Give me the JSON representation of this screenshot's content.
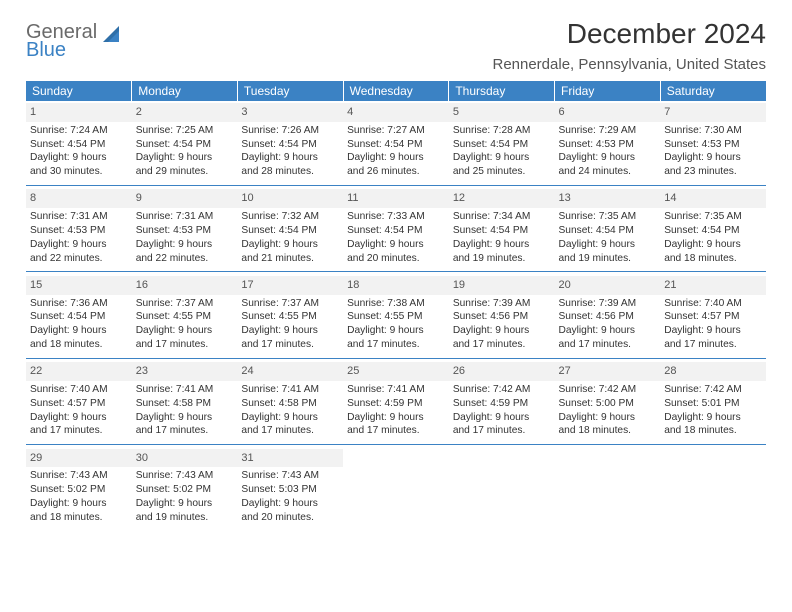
{
  "logo": {
    "line1": "General",
    "line2": "Blue",
    "icon_color": "#3b82c4",
    "text_gray": "#6a6a6a"
  },
  "title": "December 2024",
  "location": "Rennerdale, Pennsylvania, United States",
  "theme": {
    "header_bg": "#3b82c4",
    "header_fg": "#ffffff",
    "daynum_bg": "#f2f2f2",
    "rule": "#3b82c4"
  },
  "weekdays": [
    "Sunday",
    "Monday",
    "Tuesday",
    "Wednesday",
    "Thursday",
    "Friday",
    "Saturday"
  ],
  "weeks": [
    [
      {
        "n": "1",
        "sr": "Sunrise: 7:24 AM",
        "ss": "Sunset: 4:54 PM",
        "d1": "Daylight: 9 hours",
        "d2": "and 30 minutes."
      },
      {
        "n": "2",
        "sr": "Sunrise: 7:25 AM",
        "ss": "Sunset: 4:54 PM",
        "d1": "Daylight: 9 hours",
        "d2": "and 29 minutes."
      },
      {
        "n": "3",
        "sr": "Sunrise: 7:26 AM",
        "ss": "Sunset: 4:54 PM",
        "d1": "Daylight: 9 hours",
        "d2": "and 28 minutes."
      },
      {
        "n": "4",
        "sr": "Sunrise: 7:27 AM",
        "ss": "Sunset: 4:54 PM",
        "d1": "Daylight: 9 hours",
        "d2": "and 26 minutes."
      },
      {
        "n": "5",
        "sr": "Sunrise: 7:28 AM",
        "ss": "Sunset: 4:54 PM",
        "d1": "Daylight: 9 hours",
        "d2": "and 25 minutes."
      },
      {
        "n": "6",
        "sr": "Sunrise: 7:29 AM",
        "ss": "Sunset: 4:53 PM",
        "d1": "Daylight: 9 hours",
        "d2": "and 24 minutes."
      },
      {
        "n": "7",
        "sr": "Sunrise: 7:30 AM",
        "ss": "Sunset: 4:53 PM",
        "d1": "Daylight: 9 hours",
        "d2": "and 23 minutes."
      }
    ],
    [
      {
        "n": "8",
        "sr": "Sunrise: 7:31 AM",
        "ss": "Sunset: 4:53 PM",
        "d1": "Daylight: 9 hours",
        "d2": "and 22 minutes."
      },
      {
        "n": "9",
        "sr": "Sunrise: 7:31 AM",
        "ss": "Sunset: 4:53 PM",
        "d1": "Daylight: 9 hours",
        "d2": "and 22 minutes."
      },
      {
        "n": "10",
        "sr": "Sunrise: 7:32 AM",
        "ss": "Sunset: 4:54 PM",
        "d1": "Daylight: 9 hours",
        "d2": "and 21 minutes."
      },
      {
        "n": "11",
        "sr": "Sunrise: 7:33 AM",
        "ss": "Sunset: 4:54 PM",
        "d1": "Daylight: 9 hours",
        "d2": "and 20 minutes."
      },
      {
        "n": "12",
        "sr": "Sunrise: 7:34 AM",
        "ss": "Sunset: 4:54 PM",
        "d1": "Daylight: 9 hours",
        "d2": "and 19 minutes."
      },
      {
        "n": "13",
        "sr": "Sunrise: 7:35 AM",
        "ss": "Sunset: 4:54 PM",
        "d1": "Daylight: 9 hours",
        "d2": "and 19 minutes."
      },
      {
        "n": "14",
        "sr": "Sunrise: 7:35 AM",
        "ss": "Sunset: 4:54 PM",
        "d1": "Daylight: 9 hours",
        "d2": "and 18 minutes."
      }
    ],
    [
      {
        "n": "15",
        "sr": "Sunrise: 7:36 AM",
        "ss": "Sunset: 4:54 PM",
        "d1": "Daylight: 9 hours",
        "d2": "and 18 minutes."
      },
      {
        "n": "16",
        "sr": "Sunrise: 7:37 AM",
        "ss": "Sunset: 4:55 PM",
        "d1": "Daylight: 9 hours",
        "d2": "and 17 minutes."
      },
      {
        "n": "17",
        "sr": "Sunrise: 7:37 AM",
        "ss": "Sunset: 4:55 PM",
        "d1": "Daylight: 9 hours",
        "d2": "and 17 minutes."
      },
      {
        "n": "18",
        "sr": "Sunrise: 7:38 AM",
        "ss": "Sunset: 4:55 PM",
        "d1": "Daylight: 9 hours",
        "d2": "and 17 minutes."
      },
      {
        "n": "19",
        "sr": "Sunrise: 7:39 AM",
        "ss": "Sunset: 4:56 PM",
        "d1": "Daylight: 9 hours",
        "d2": "and 17 minutes."
      },
      {
        "n": "20",
        "sr": "Sunrise: 7:39 AM",
        "ss": "Sunset: 4:56 PM",
        "d1": "Daylight: 9 hours",
        "d2": "and 17 minutes."
      },
      {
        "n": "21",
        "sr": "Sunrise: 7:40 AM",
        "ss": "Sunset: 4:57 PM",
        "d1": "Daylight: 9 hours",
        "d2": "and 17 minutes."
      }
    ],
    [
      {
        "n": "22",
        "sr": "Sunrise: 7:40 AM",
        "ss": "Sunset: 4:57 PM",
        "d1": "Daylight: 9 hours",
        "d2": "and 17 minutes."
      },
      {
        "n": "23",
        "sr": "Sunrise: 7:41 AM",
        "ss": "Sunset: 4:58 PM",
        "d1": "Daylight: 9 hours",
        "d2": "and 17 minutes."
      },
      {
        "n": "24",
        "sr": "Sunrise: 7:41 AM",
        "ss": "Sunset: 4:58 PM",
        "d1": "Daylight: 9 hours",
        "d2": "and 17 minutes."
      },
      {
        "n": "25",
        "sr": "Sunrise: 7:41 AM",
        "ss": "Sunset: 4:59 PM",
        "d1": "Daylight: 9 hours",
        "d2": "and 17 minutes."
      },
      {
        "n": "26",
        "sr": "Sunrise: 7:42 AM",
        "ss": "Sunset: 4:59 PM",
        "d1": "Daylight: 9 hours",
        "d2": "and 17 minutes."
      },
      {
        "n": "27",
        "sr": "Sunrise: 7:42 AM",
        "ss": "Sunset: 5:00 PM",
        "d1": "Daylight: 9 hours",
        "d2": "and 18 minutes."
      },
      {
        "n": "28",
        "sr": "Sunrise: 7:42 AM",
        "ss": "Sunset: 5:01 PM",
        "d1": "Daylight: 9 hours",
        "d2": "and 18 minutes."
      }
    ],
    [
      {
        "n": "29",
        "sr": "Sunrise: 7:43 AM",
        "ss": "Sunset: 5:02 PM",
        "d1": "Daylight: 9 hours",
        "d2": "and 18 minutes."
      },
      {
        "n": "30",
        "sr": "Sunrise: 7:43 AM",
        "ss": "Sunset: 5:02 PM",
        "d1": "Daylight: 9 hours",
        "d2": "and 19 minutes."
      },
      {
        "n": "31",
        "sr": "Sunrise: 7:43 AM",
        "ss": "Sunset: 5:03 PM",
        "d1": "Daylight: 9 hours",
        "d2": "and 20 minutes."
      },
      null,
      null,
      null,
      null
    ]
  ]
}
